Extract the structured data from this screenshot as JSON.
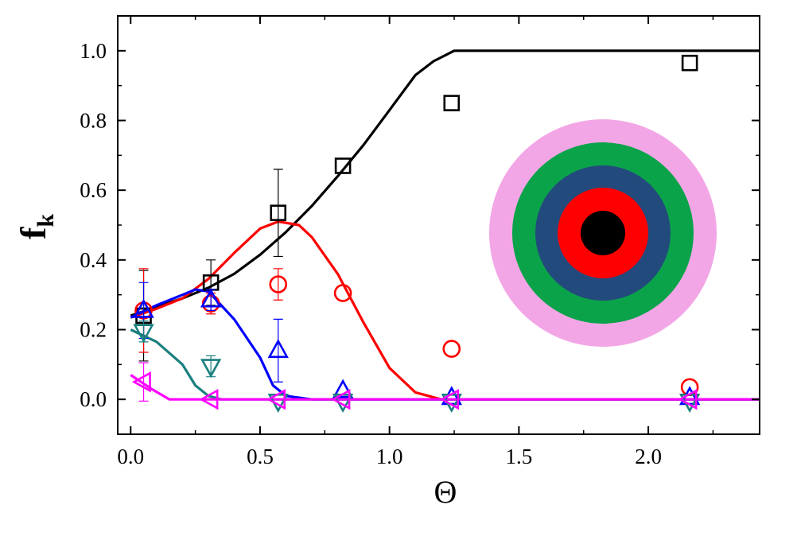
{
  "chart_data": {
    "type": "scatter",
    "title": "",
    "xlabel": "Θ",
    "ylabel_main": "f",
    "ylabel_sub": "k",
    "xlim": [
      -0.05,
      2.43
    ],
    "ylim": [
      -0.1,
      1.1
    ],
    "x_ticks": [
      0.0,
      0.5,
      1.0,
      1.5,
      2.0
    ],
    "x_tick_labels": [
      "0.0",
      "0.5",
      "1.0",
      "1.5",
      "2.0"
    ],
    "y_ticks": [
      0.0,
      0.2,
      0.4,
      0.6,
      0.8,
      1.0
    ],
    "y_tick_labels": [
      "0.0",
      "0.2",
      "0.4",
      "0.6",
      "0.8",
      "1.0"
    ],
    "grid": false,
    "legend": "none",
    "inset": {
      "type": "concentric-rings",
      "colors": [
        "#f3a6e6",
        "#0aa34a",
        "#234a7c",
        "#ff0000",
        "#000000"
      ]
    },
    "series": [
      {
        "color": "#000000",
        "marker": "square",
        "points": [
          {
            "x": 0.05,
            "y": 0.24,
            "err": 0.13
          },
          {
            "x": 0.31,
            "y": 0.335,
            "err": 0.065
          },
          {
            "x": 0.57,
            "y": 0.535,
            "err": 0.125
          },
          {
            "x": 0.82,
            "y": 0.67
          },
          {
            "x": 1.24,
            "y": 0.85
          },
          {
            "x": 2.16,
            "y": 0.965
          }
        ],
        "curve": [
          [
            0.0,
            0.24
          ],
          [
            0.1,
            0.265
          ],
          [
            0.2,
            0.29
          ],
          [
            0.3,
            0.32
          ],
          [
            0.4,
            0.36
          ],
          [
            0.5,
            0.415
          ],
          [
            0.6,
            0.48
          ],
          [
            0.7,
            0.555
          ],
          [
            0.8,
            0.64
          ],
          [
            0.9,
            0.73
          ],
          [
            1.0,
            0.83
          ],
          [
            1.1,
            0.93
          ],
          [
            1.17,
            0.97
          ],
          [
            1.25,
            1.0
          ],
          [
            1.3,
            1.0
          ],
          [
            2.43,
            1.0
          ]
        ]
      },
      {
        "color": "#ff0000",
        "marker": "circle",
        "points": [
          {
            "x": 0.05,
            "y": 0.255,
            "err": 0.12
          },
          {
            "x": 0.31,
            "y": 0.275,
            "err": 0.03
          },
          {
            "x": 0.57,
            "y": 0.33,
            "err": 0.045
          },
          {
            "x": 0.82,
            "y": 0.305
          },
          {
            "x": 1.24,
            "y": 0.145
          },
          {
            "x": 2.16,
            "y": 0.035
          }
        ],
        "curve": [
          [
            0.0,
            0.235
          ],
          [
            0.1,
            0.26
          ],
          [
            0.2,
            0.29
          ],
          [
            0.3,
            0.345
          ],
          [
            0.4,
            0.42
          ],
          [
            0.5,
            0.49
          ],
          [
            0.57,
            0.51
          ],
          [
            0.65,
            0.5
          ],
          [
            0.7,
            0.465
          ],
          [
            0.8,
            0.36
          ],
          [
            0.9,
            0.22
          ],
          [
            1.0,
            0.09
          ],
          [
            1.1,
            0.02
          ],
          [
            1.2,
            0.0
          ],
          [
            2.43,
            0.0
          ]
        ]
      },
      {
        "color": "#0000ff",
        "marker": "triangle-up",
        "points": [
          {
            "x": 0.05,
            "y": 0.255,
            "err": 0.08
          },
          {
            "x": 0.31,
            "y": 0.285,
            "err": 0.03
          },
          {
            "x": 0.57,
            "y": 0.14,
            "err": 0.09
          },
          {
            "x": 0.82,
            "y": 0.025
          },
          {
            "x": 1.24,
            "y": 0.005
          },
          {
            "x": 2.16,
            "y": 0.005
          }
        ],
        "curve": [
          [
            0.0,
            0.235
          ],
          [
            0.1,
            0.27
          ],
          [
            0.2,
            0.3
          ],
          [
            0.25,
            0.315
          ],
          [
            0.3,
            0.31
          ],
          [
            0.4,
            0.23
          ],
          [
            0.5,
            0.12
          ],
          [
            0.55,
            0.04
          ],
          [
            0.6,
            0.01
          ],
          [
            0.7,
            0.0
          ],
          [
            2.43,
            0.0
          ]
        ]
      },
      {
        "color": "#1a7f7f",
        "marker": "triangle-down",
        "points": [
          {
            "x": 0.05,
            "y": 0.195,
            "err": 0.03
          },
          {
            "x": 0.31,
            "y": 0.095,
            "err": 0.03
          },
          {
            "x": 0.57,
            "y": -0.005
          },
          {
            "x": 0.82,
            "y": -0.005
          },
          {
            "x": 1.24,
            "y": -0.005
          },
          {
            "x": 2.16,
            "y": -0.005
          }
        ],
        "curve": [
          [
            0.0,
            0.2
          ],
          [
            0.1,
            0.165
          ],
          [
            0.2,
            0.1
          ],
          [
            0.25,
            0.04
          ],
          [
            0.3,
            0.01
          ],
          [
            0.35,
            0.0
          ],
          [
            2.43,
            0.0
          ]
        ]
      },
      {
        "color": "#ff00ff",
        "marker": "triangle-left",
        "points": [
          {
            "x": 0.05,
            "y": 0.05,
            "err": 0.055
          },
          {
            "x": 0.31,
            "y": 0.0
          },
          {
            "x": 0.57,
            "y": 0.0
          },
          {
            "x": 0.82,
            "y": 0.0
          },
          {
            "x": 1.24,
            "y": 0.0
          },
          {
            "x": 2.16,
            "y": 0.0
          }
        ],
        "curve": [
          [
            0.0,
            0.07
          ],
          [
            0.08,
            0.03
          ],
          [
            0.15,
            0.0
          ],
          [
            2.43,
            0.0
          ]
        ]
      }
    ]
  }
}
